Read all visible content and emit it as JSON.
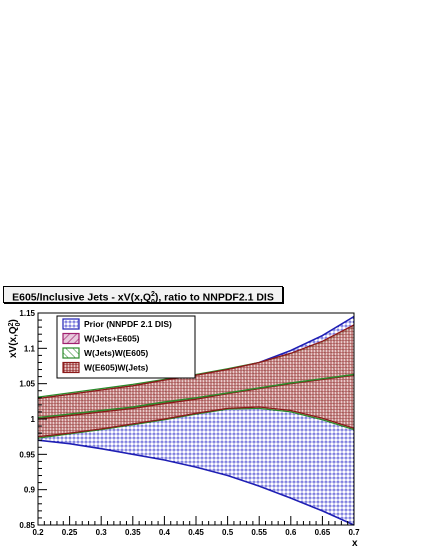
{
  "chart_data": {
    "type": "area",
    "title": "E605/Inclusive Jets - xV(x,Q",
    "title_sup": "2",
    "title_sub": "0",
    "title_tail": "), ratio to NNPDF2.1 DIS",
    "xlabel": "x",
    "ylabel": "xV(x,Q",
    "ylabel_sup": "2",
    "ylabel_sub": "0",
    "ylabel_tail": ")",
    "xlim": [
      0.2,
      0.7
    ],
    "ylim": [
      0.85,
      1.15
    ],
    "x_ticks": [
      "0.2",
      "0.25",
      "0.3",
      "0.35",
      "0.4",
      "0.45",
      "0.5",
      "0.55",
      "0.6",
      "0.65",
      "0.7"
    ],
    "y_ticks": [
      "0.85",
      "0.9",
      "0.95",
      "1",
      "1.05",
      "1.1",
      "1.15"
    ],
    "legend_position": "top-left",
    "x": [
      0.2,
      0.25,
      0.3,
      0.35,
      0.4,
      0.45,
      0.5,
      0.55,
      0.6,
      0.65,
      0.7
    ],
    "series": [
      {
        "name": "Prior (NNPDF 2.1 DIS)",
        "color": "#1f1fb4",
        "upper": [
          1.03,
          1.035,
          1.04,
          1.045,
          1.053,
          1.06,
          1.068,
          1.08,
          1.097,
          1.118,
          1.145
        ],
        "lower": [
          0.97,
          0.965,
          0.958,
          0.95,
          0.942,
          0.932,
          0.92,
          0.905,
          0.888,
          0.87,
          0.85
        ]
      },
      {
        "name": "W(Jets+E605)",
        "color": "#a0206e",
        "upper": [
          1.029,
          1.035,
          1.041,
          1.047,
          1.055,
          1.062,
          1.07,
          1.08,
          1.093,
          1.11,
          1.133
        ],
        "lower": [
          0.975,
          0.98,
          0.986,
          0.993,
          1.0,
          1.008,
          1.015,
          1.017,
          1.012,
          1.001,
          0.987
        ]
      },
      {
        "name": "W(Jets)W(E605)",
        "color": "#2a8a2a",
        "upper": [
          1.031,
          1.037,
          1.043,
          1.049,
          1.056,
          1.063,
          1.071,
          1.08,
          1.092,
          1.108,
          1.13
        ],
        "lower": [
          0.973,
          0.979,
          0.985,
          0.992,
          0.999,
          1.007,
          1.014,
          1.015,
          1.01,
          0.999,
          0.985
        ]
      },
      {
        "name": "W(E605)W(Jets)",
        "color": "#8b1a1a",
        "upper": [
          1.029,
          1.035,
          1.041,
          1.047,
          1.055,
          1.062,
          1.07,
          1.08,
          1.093,
          1.11,
          1.133
        ],
        "lower": [
          0.975,
          0.98,
          0.986,
          0.993,
          1.0,
          1.008,
          1.015,
          1.017,
          1.012,
          1.001,
          0.987
        ]
      }
    ],
    "central_lines": [
      {
        "color": "#8b1a1a",
        "y": [
          1.0,
          1.005,
          1.01,
          1.015,
          1.022,
          1.028,
          1.036,
          1.043,
          1.05,
          1.056,
          1.062
        ]
      },
      {
        "color": "#2a8a2a",
        "y": [
          1.002,
          1.007,
          1.012,
          1.017,
          1.024,
          1.03,
          1.037,
          1.044,
          1.051,
          1.057,
          1.063
        ]
      }
    ]
  }
}
